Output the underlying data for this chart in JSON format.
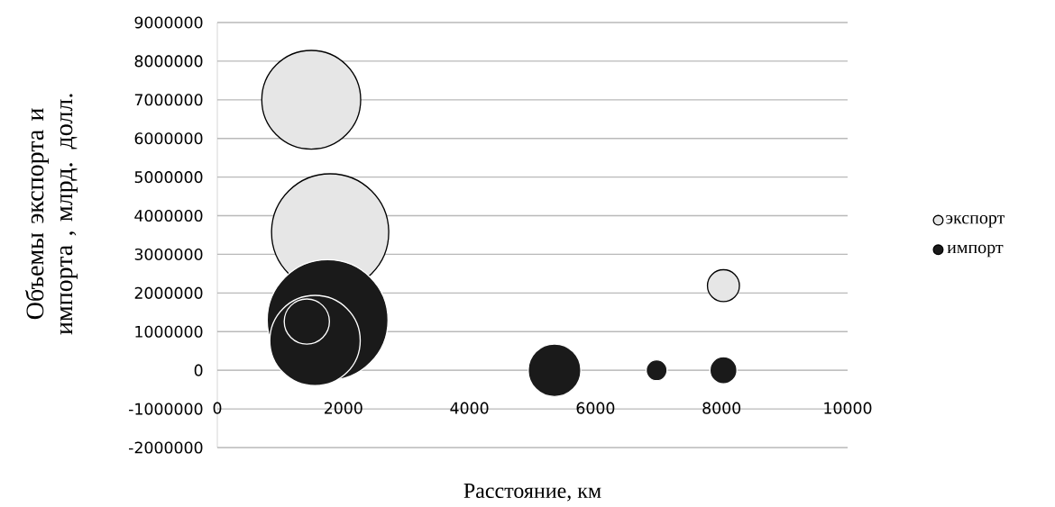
{
  "chart_data": {
    "type": "bubble",
    "xlabel": "Расстояние, км",
    "ylabel": "Объемы экспорта и импорта , млрд. долл.",
    "xlim": [
      0,
      10000
    ],
    "xticks": [
      0,
      2000,
      4000,
      6000,
      8000,
      10000
    ],
    "ylim": [
      -2000000,
      9000000
    ],
    "yticks": [
      -2000000,
      -1000000,
      0,
      1000000,
      2000000,
      3000000,
      4000000,
      5000000,
      6000000,
      7000000,
      8000000,
      9000000
    ],
    "grid": "y",
    "legend": "right",
    "series": [
      {
        "name": "экспорт",
        "color": "#e6e6e6",
        "x": [
          1490,
          1790,
          8030
        ],
        "values": [
          7000000,
          3570000,
          2190000
        ],
        "sizes": [
          0.67,
          0.94,
          0.07
        ]
      },
      {
        "name": "импорт",
        "color": "#1a1a1a",
        "x": [
          1750,
          1550,
          1420,
          5350,
          6970,
          8030
        ],
        "values": [
          1300000,
          770000,
          1260000,
          0,
          0,
          0
        ],
        "sizes": [
          1,
          0.56,
          0.14,
          0.19,
          0.03,
          0.05
        ]
      }
    ]
  }
}
